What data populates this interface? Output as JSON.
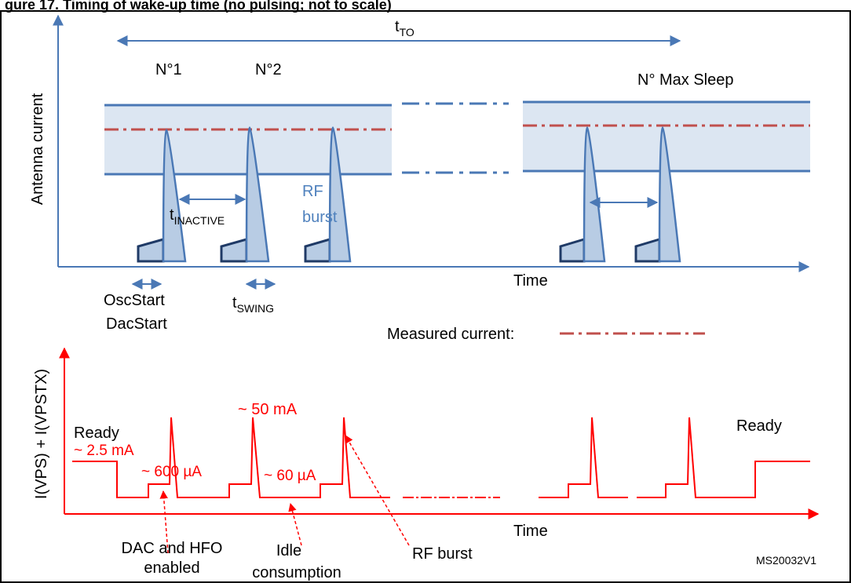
{
  "header_partial": "gure 17. Timing of wake-up time (no pulsing; not to scale)",
  "upper": {
    "y_axis_label": "Antenna current",
    "x_axis_label": "Time",
    "t_to": {
      "main": "t",
      "sub": "TO"
    },
    "pulse_labels": [
      "N°1",
      "N°2",
      "N° Max Sleep"
    ],
    "t_inactive": {
      "main": "t",
      "sub": "INACTIVE"
    },
    "rf_burst": [
      "RF",
      "burst"
    ],
    "osc_start": "OscStart",
    "dac_start": "DacStart",
    "t_swing": {
      "main": "t",
      "sub": "SWING"
    },
    "measured_current": "Measured current:"
  },
  "lower": {
    "y_axis_label": "I(VPS) + I(VPSTX)",
    "x_axis_label": "Time",
    "ready_left": "Ready",
    "current_ready": "~ 2.5 mA",
    "current_peak": "~ 50 mA",
    "current_dac": "~ 600 µA",
    "current_idle": "~ 60 µA",
    "ready_right": "Ready",
    "annotation_dac": [
      "DAC and HFO",
      "enabled"
    ],
    "annotation_idle": [
      "Idle",
      "consumption"
    ],
    "annotation_rf": "RF burst"
  },
  "figure_id": "MS20032V1",
  "colors": {
    "blue": "#4a78b5",
    "light_band": "#dce6f2",
    "pulse_fill": "#b8cce4",
    "red_dash": "#c0504d",
    "red": "#ff0000",
    "text": "#000000",
    "blue_text": "#4f81bd"
  }
}
